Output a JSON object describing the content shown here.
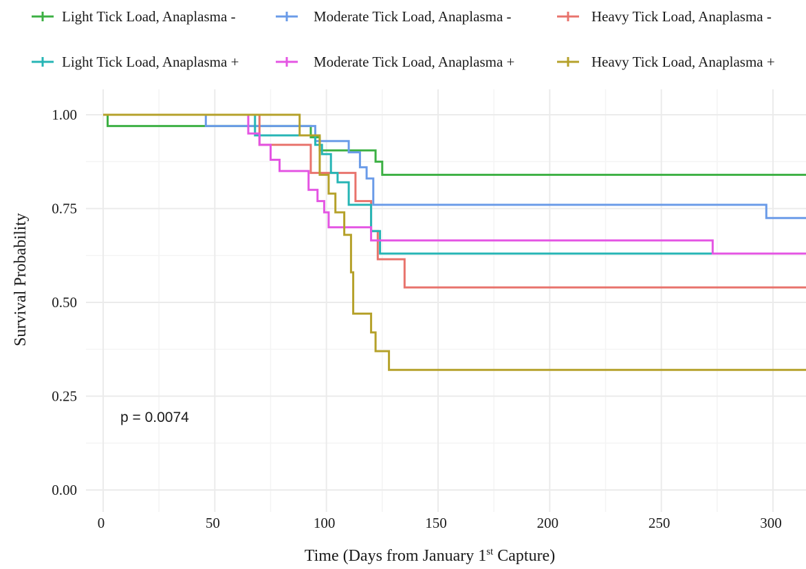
{
  "chart_data": {
    "type": "line",
    "subtype": "kaplan-meier step",
    "title": "",
    "xlabel": {
      "main": "Time (Days from January 1",
      "sup": "st",
      "tail": " Capture)"
    },
    "ylabel": "Survival Probability",
    "xlim": [
      0,
      315
    ],
    "ylim": [
      0,
      1
    ],
    "x_ticks": [
      0,
      50,
      100,
      150,
      200,
      250,
      300
    ],
    "x_tick_labels": [
      "0",
      "50",
      "100",
      "150",
      "200",
      "250",
      "300"
    ],
    "y_ticks": [
      0,
      0.25,
      0.5,
      0.75,
      1
    ],
    "y_tick_labels": [
      "0.00",
      "0.25",
      "0.50",
      "0.75",
      "1.00"
    ],
    "grid": true,
    "legend_position": "top",
    "annotation": "p = 0.0074",
    "series": [
      {
        "name": "Light Tick Load, Anaplasma -",
        "color": "#3cb043",
        "x": [
          0,
          2,
          93,
          97,
          122,
          125,
          315
        ],
        "y": [
          1.0,
          0.97,
          0.94,
          0.905,
          0.875,
          0.84,
          0.84
        ]
      },
      {
        "name": "Moderate Tick Load, Anaplasma -",
        "color": "#6a9be8",
        "x": [
          0,
          46,
          70,
          95,
          110,
          115,
          118,
          121,
          297,
          315
        ],
        "y": [
          1.0,
          0.97,
          0.97,
          0.93,
          0.9,
          0.86,
          0.83,
          0.76,
          0.725,
          0.725
        ]
      },
      {
        "name": "Heavy Tick Load, Anaplasma -",
        "color": "#e8736c",
        "x": [
          0,
          70,
          93,
          113,
          120,
          123,
          135,
          315
        ],
        "y": [
          1.0,
          0.92,
          0.845,
          0.77,
          0.69,
          0.615,
          0.54,
          0.54
        ]
      },
      {
        "name": "Light Tick Load, Anaplasma +",
        "color": "#26b5b5",
        "x": [
          0,
          68,
          93,
          95,
          98,
          102,
          105,
          110,
          120,
          124,
          315
        ],
        "y": [
          1.0,
          0.945,
          0.945,
          0.92,
          0.895,
          0.845,
          0.82,
          0.76,
          0.69,
          0.63,
          0.63
        ]
      },
      {
        "name": "Moderate Tick Load, Anaplasma +",
        "color": "#e455e3",
        "x": [
          0,
          65,
          70,
          75,
          79,
          92,
          96,
          99,
          101,
          120,
          273,
          315
        ],
        "y": [
          1.0,
          0.95,
          0.92,
          0.88,
          0.85,
          0.8,
          0.77,
          0.74,
          0.7,
          0.665,
          0.63,
          0.63
        ]
      },
      {
        "name": "Heavy Tick Load, Anaplasma +",
        "color": "#b5a12a",
        "x": [
          0,
          88,
          97,
          101,
          104,
          108,
          111,
          112,
          120,
          122,
          124,
          128,
          315
        ],
        "y": [
          1.0,
          0.945,
          0.84,
          0.79,
          0.74,
          0.68,
          0.58,
          0.47,
          0.42,
          0.37,
          0.37,
          0.32,
          0.32
        ]
      }
    ]
  }
}
